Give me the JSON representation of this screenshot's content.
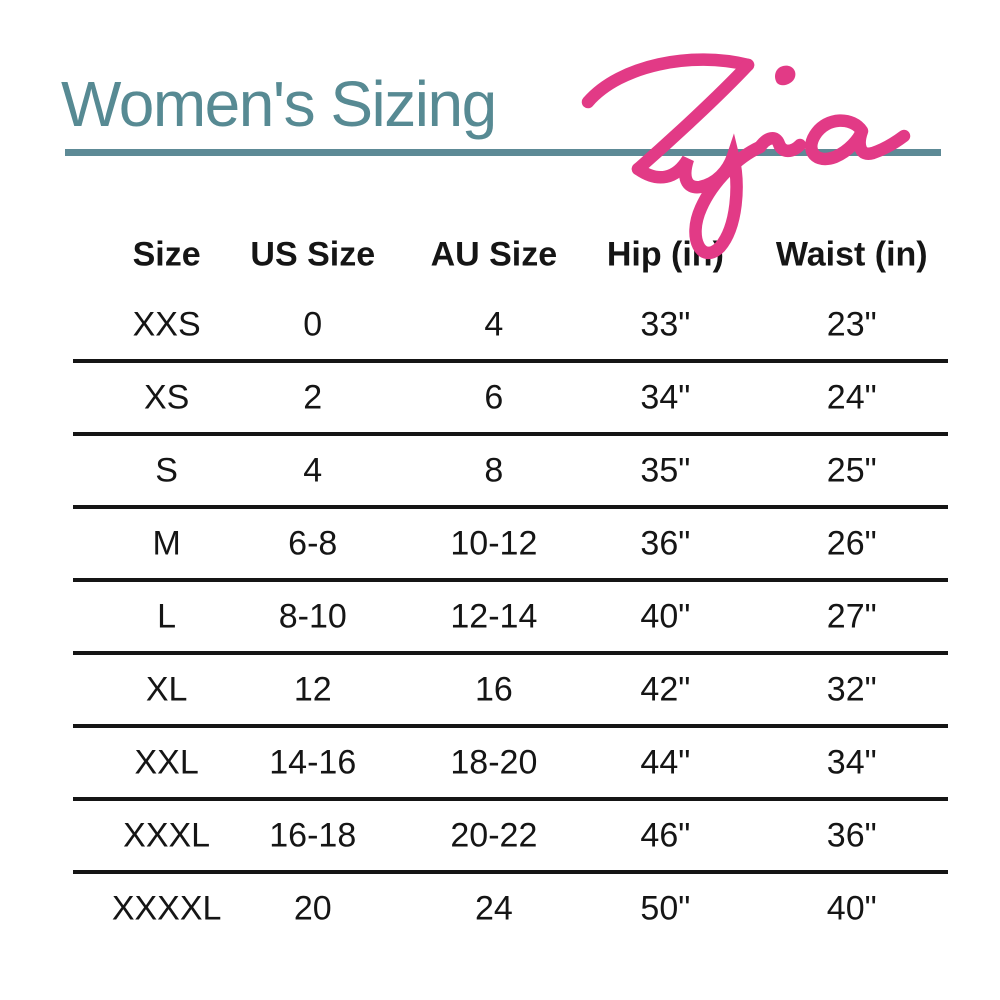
{
  "title": {
    "text": "Women's Sizing"
  },
  "brand": {
    "name": "Zyia"
  },
  "colors": {
    "title": "#578a93",
    "rule": "#5d8a96",
    "logo_pink": "#e23a86",
    "text": "#151515",
    "row_line": "#151515",
    "background": "#ffffff"
  },
  "table": {
    "columns": [
      "Size",
      "US Size",
      "AU Size",
      "Hip (in)",
      "Waist (in)"
    ],
    "rows": [
      [
        "XXS",
        "0",
        "4",
        "33\"",
        "23\""
      ],
      [
        "XS",
        "2",
        "6",
        "34\"",
        "24\""
      ],
      [
        "S",
        "4",
        "8",
        "35\"",
        "25\""
      ],
      [
        "M",
        "6-8",
        "10-12",
        "36\"",
        "26\""
      ],
      [
        "L",
        "8-10",
        "12-14",
        "40\"",
        "27\""
      ],
      [
        "XL",
        "12",
        "16",
        "42\"",
        "32\""
      ],
      [
        "XXL",
        "14-16",
        "18-20",
        "44\"",
        "34\""
      ],
      [
        "XXXL",
        "16-18",
        "20-22",
        "46\"",
        "36\""
      ],
      [
        "XXXXL",
        "20",
        "24",
        "50\"",
        "40\""
      ]
    ]
  }
}
